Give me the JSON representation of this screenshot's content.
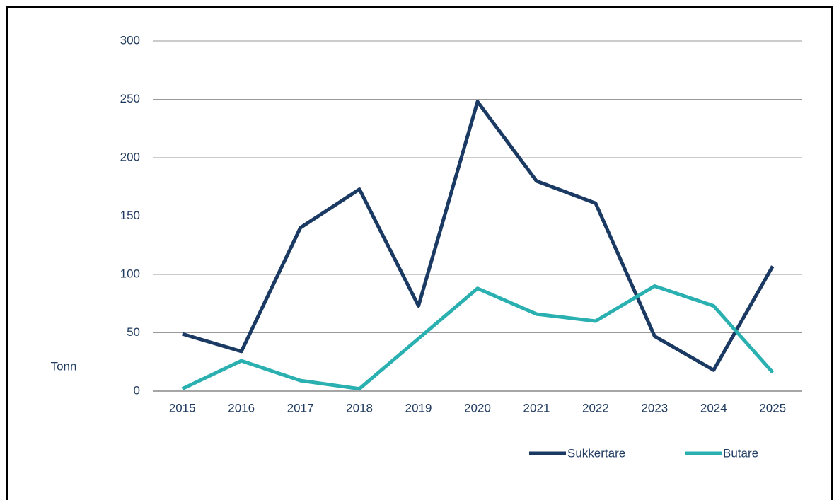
{
  "chart_data": {
    "type": "line",
    "y_label": "Tonn",
    "categories": [
      "2015",
      "2016",
      "2017",
      "2018",
      "2019",
      "2020",
      "2021",
      "2022",
      "2023",
      "2024",
      "2025"
    ],
    "series": [
      {
        "name": "Sukkertare",
        "color": "#1b3a63",
        "values": [
          49,
          34,
          140,
          173,
          73,
          248,
          180,
          161,
          47,
          18,
          107
        ]
      },
      {
        "name": "Butare",
        "color": "#2ab0b0",
        "values": [
          2,
          26,
          9,
          2,
          45,
          88,
          66,
          60,
          90,
          73,
          16
        ]
      }
    ],
    "ylim": [
      0,
      300
    ],
    "yticks": [
      0,
      50,
      100,
      150,
      200,
      250,
      300
    ],
    "grid": true,
    "legend": "bottom-right"
  }
}
